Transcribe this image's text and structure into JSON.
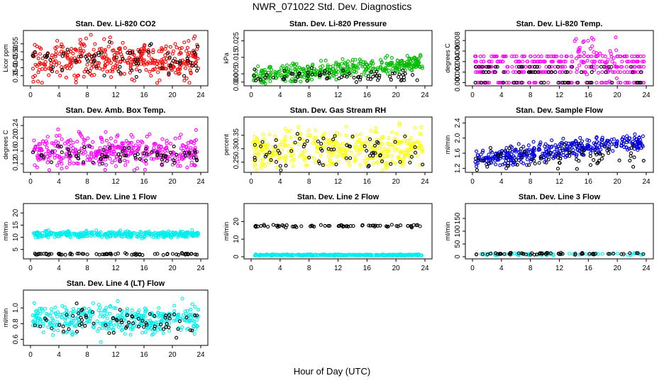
{
  "figure": {
    "title": "NWR_071022  Std. Dev. Diagnostics",
    "xlabel": "Hour of Day (UTC)"
  },
  "chart_data": [
    {
      "type": "scatter",
      "title": "Stan. Dev. Li-820 CO2",
      "ylabel": "Licor ppm",
      "color": "#ff0000",
      "xlim": [
        0,
        24
      ],
      "xticks": [
        0,
        4,
        8,
        12,
        16,
        20,
        24
      ],
      "ylim": [
        0.3,
        0.62
      ],
      "yticks": [
        "0.35",
        "0.40",
        "0.45",
        "0.50",
        "0.55"
      ],
      "series": {
        "base": 0.44,
        "trend": 0.02,
        "spread": 0.06,
        "n": 380
      },
      "ref": {
        "base": 0.45,
        "spread": 0.05,
        "n": 70
      }
    },
    {
      "type": "scatter",
      "title": "Stan. Dev. Li-820 Pressure",
      "ylabel": "kPa",
      "color": "#00bb00",
      "xlim": [
        0,
        24
      ],
      "xticks": [
        0,
        4,
        8,
        12,
        16,
        20,
        24
      ],
      "ylim": [
        -0.001,
        0.03
      ],
      "yticks": [
        "0.000",
        "0.005",
        "0.015",
        "0.025"
      ],
      "ytick_values": [
        0,
        0.005,
        0.015,
        0.025
      ],
      "series": {
        "base": 0.003,
        "trend": 0.009,
        "spread": 0.0025,
        "n": 380
      },
      "ref": {
        "base": 0.004,
        "spread": 0.002,
        "n": 70
      }
    },
    {
      "type": "scatter",
      "title": "Stan. Dev. Li-820 Temp.",
      "ylabel": "degrees C",
      "color": "#ff00ff",
      "xlim": [
        0,
        24
      ],
      "xticks": [
        0,
        4,
        8,
        12,
        16,
        20,
        24
      ],
      "ylim": [
        -0.0002,
        0.0095
      ],
      "yticks": [
        "0.000",
        "0.002",
        "0.004",
        "0.006",
        "0.008"
      ],
      "ytick_values": [
        0,
        0.002,
        0.004,
        0.006,
        0.008
      ],
      "series": {
        "levels": [
          0,
          0.002,
          0.003,
          0.004,
          0.005
        ],
        "n": 380
      },
      "ref": {
        "levels": [
          0,
          0.002,
          0.003
        ],
        "n": 70
      }
    },
    {
      "type": "scatter",
      "title": "Stan. Dev. Amb. Box Temp.",
      "ylabel": "degrees C",
      "color": "#ff00ff",
      "xlim": [
        0,
        24
      ],
      "xticks": [
        0,
        4,
        8,
        12,
        16,
        20,
        24
      ],
      "ylim": [
        0.1,
        0.26
      ],
      "yticks": [
        "0.12",
        "0.16",
        "0.20",
        "0.24"
      ],
      "ytick_values": [
        0.12,
        0.16,
        0.2,
        0.24
      ],
      "series": {
        "base": 0.16,
        "trend": 0,
        "spread": 0.025,
        "n": 380
      },
      "ref": {
        "base": 0.145,
        "spread": 0.015,
        "n": 70
      }
    },
    {
      "type": "scatter",
      "title": "Stan. Dev. Gas Stream RH",
      "ylabel": "percent",
      "color": "#ffff00",
      "xlim": [
        0,
        24
      ],
      "xticks": [
        0,
        4,
        8,
        12,
        16,
        20,
        24
      ],
      "ylim": [
        0.22,
        0.41
      ],
      "yticks": [
        "0.25",
        "0.30",
        "0.35"
      ],
      "ytick_values": [
        0.25,
        0.3,
        0.35
      ],
      "series": {
        "base": 0.3,
        "trend": 0,
        "spread": 0.035,
        "n": 380
      },
      "ref": {
        "base": 0.29,
        "spread": 0.035,
        "n": 70
      }
    },
    {
      "type": "scatter",
      "title": "Stan. Dev. Sample Flow",
      "ylabel": "ml/min",
      "color": "#0000dd",
      "xlim": [
        0,
        24
      ],
      "xticks": [
        0,
        4,
        8,
        12,
        16,
        20,
        24
      ],
      "ylim": [
        1.15,
        2.5
      ],
      "yticks": [
        "1.2",
        "1.6",
        "2.0",
        "2.4"
      ],
      "ytick_values": [
        1.2,
        1.6,
        2.0,
        2.4
      ],
      "series": {
        "base": 1.42,
        "trend": 0.52,
        "spread": 0.12,
        "n": 380
      },
      "ref": {
        "base": 1.5,
        "spread": 0.15,
        "n": 70
      }
    },
    {
      "type": "scatter",
      "title": "Stan. Dev. Line 1 Flow",
      "ylabel": "ml/min",
      "color": "#00eeee",
      "xlim": [
        0,
        24
      ],
      "xticks": [
        0,
        4,
        8,
        12,
        16,
        20,
        24
      ],
      "ylim": [
        2,
        23
      ],
      "yticks": [
        "5",
        "10",
        "15",
        "20"
      ],
      "ytick_values": [
        5,
        10,
        15,
        20
      ],
      "series": {
        "base": 11.2,
        "trend": 0,
        "spread": 0.6,
        "n": 380
      },
      "ref": {
        "base": 3.1,
        "spread": 0.2,
        "n": 70
      }
    },
    {
      "type": "scatter",
      "title": "Stan. Dev. Line 2 Flow",
      "ylabel": "ml/min",
      "color": "#00eeee",
      "xlim": [
        0,
        24
      ],
      "xticks": [
        0,
        4,
        8,
        12,
        16,
        20,
        24
      ],
      "ylim": [
        0,
        29
      ],
      "yticks": [
        "0",
        "10",
        "20"
      ],
      "ytick_values": [
        0,
        10,
        20
      ],
      "series": {
        "base": 1.0,
        "trend": 0,
        "spread": 0.2,
        "n": 380
      },
      "ref": {
        "base": 17.5,
        "spread": 0.4,
        "n": 70
      }
    },
    {
      "type": "scatter",
      "title": "Stan. Dev. Line 3 Flow",
      "ylabel": "ml/min",
      "color": "#00eeee",
      "xlim": [
        0,
        24
      ],
      "xticks": [
        0,
        4,
        8,
        12,
        16,
        20,
        24
      ],
      "ylim": [
        0,
        200
      ],
      "yticks": [
        "0",
        "50",
        "100",
        "150"
      ],
      "ytick_values": [
        0,
        50,
        100,
        150
      ],
      "series": {
        "base": 10,
        "trend": 0,
        "spread": 2,
        "n": 60
      },
      "ref": {
        "base": 12,
        "spread": 2,
        "n": 60
      }
    },
    {
      "type": "scatter",
      "title": "Stan. Dev. Line 4 (LT) Flow",
      "ylabel": "ml/min",
      "color": "#00eeee",
      "xlim": [
        0,
        24
      ],
      "xticks": [
        0,
        4,
        8,
        12,
        16,
        20,
        24
      ],
      "ylim": [
        0.55,
        1.2
      ],
      "yticks": [
        "0.6",
        "0.8",
        "1.0"
      ],
      "ytick_values": [
        0.6,
        0.8,
        1.0
      ],
      "series": {
        "base": 0.85,
        "trend": 0,
        "spread": 0.09,
        "n": 380
      },
      "ref": {
        "base": 0.83,
        "spread": 0.08,
        "n": 70
      }
    }
  ]
}
